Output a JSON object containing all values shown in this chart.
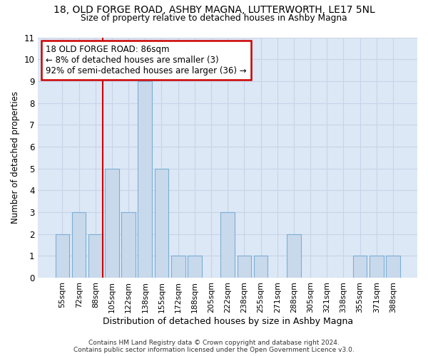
{
  "title": "18, OLD FORGE ROAD, ASHBY MAGNA, LUTTERWORTH, LE17 5NL",
  "subtitle": "Size of property relative to detached houses in Ashby Magna",
  "xlabel": "Distribution of detached houses by size in Ashby Magna",
  "ylabel": "Number of detached properties",
  "footer": "Contains HM Land Registry data © Crown copyright and database right 2024.\nContains public sector information licensed under the Open Government Licence v3.0.",
  "categories": [
    "55sqm",
    "72sqm",
    "88sqm",
    "105sqm",
    "122sqm",
    "138sqm",
    "155sqm",
    "172sqm",
    "188sqm",
    "205sqm",
    "222sqm",
    "238sqm",
    "255sqm",
    "271sqm",
    "288sqm",
    "305sqm",
    "321sqm",
    "338sqm",
    "355sqm",
    "371sqm",
    "388sqm"
  ],
  "values": [
    2,
    3,
    2,
    5,
    3,
    9,
    5,
    1,
    1,
    0,
    3,
    1,
    1,
    0,
    2,
    0,
    0,
    0,
    1,
    1,
    1
  ],
  "bar_color": "#c9d9ec",
  "bar_edge_color": "#7bafd4",
  "grid_color": "#c8d4e8",
  "annotation_box_color": "#cc0000",
  "vline_color": "#cc0000",
  "vline_bar_index": 2,
  "annotation_text_line1": "18 OLD FORGE ROAD: 86sqm",
  "annotation_text_line2": "← 8% of detached houses are smaller (3)",
  "annotation_text_line3": "92% of semi-detached houses are larger (36) →",
  "ylim": [
    0,
    11
  ],
  "yticks": [
    0,
    1,
    2,
    3,
    4,
    5,
    6,
    7,
    8,
    9,
    10,
    11
  ],
  "background_color": "#ffffff",
  "plot_bg_color": "#dce8f5"
}
